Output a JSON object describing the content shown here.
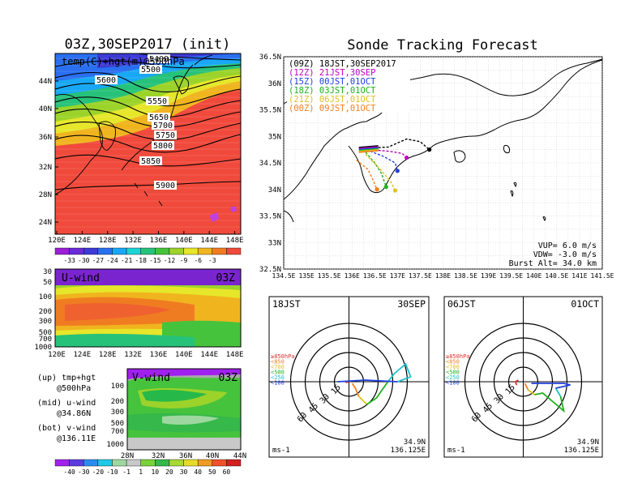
{
  "left_panel": {
    "title": "03Z,30SEP2017 (init)",
    "map_label": "temp(C)+hgt(m)@500hPa",
    "lon_ticks": [
      "120E",
      "124E",
      "128E",
      "132E",
      "136E",
      "140E",
      "144E",
      "148E"
    ],
    "lat_ticks": [
      "44N",
      "40N",
      "36N",
      "32N",
      "28N",
      "24N"
    ],
    "contour_labels": [
      "5400",
      "5500",
      "5600",
      "5550",
      "5650",
      "5700",
      "5750",
      "5800",
      "5850",
      "5900"
    ],
    "colorbar1_labels": [
      "-33",
      "-30",
      "-27",
      "-24",
      "-21",
      "-18",
      "-15",
      "-12",
      "-9",
      "-6",
      "-3"
    ],
    "colorbar1_colors": [
      "#9b1fd6",
      "#6a2bd9",
      "#3d3ad6",
      "#2a6ff0",
      "#19a8f5",
      "#1fd3d3",
      "#27c27a",
      "#46c33c",
      "#9bd32a",
      "#e6e62a",
      "#f0b41e",
      "#f07c22",
      "#f04a3c"
    ]
  },
  "uwind_panel": {
    "label": "U-wind",
    "time": "03Z",
    "levels": [
      "30",
      "50",
      "100",
      "200",
      "300",
      "500",
      "700",
      "1000"
    ],
    "lon_ticks": [
      "120E",
      "124E",
      "128E",
      "132E",
      "136E",
      "140E",
      "144E",
      "148E"
    ]
  },
  "vwind_panel": {
    "label": "V-wind",
    "time": "03Z",
    "levels": [
      "100",
      "200",
      "300",
      "500",
      "700",
      "1000"
    ],
    "lat_ticks": [
      "28N",
      "32N",
      "36N",
      "40N",
      "44N"
    ]
  },
  "legend_notes": {
    "up1": "(up) tmp+hgt",
    "up2": "@500hPa",
    "mid1": "(mid) u-wind",
    "mid2": "@34.86N",
    "bot1": "(bot) v-wind",
    "bot2": "@136.11E"
  },
  "colorbar2": {
    "labels": [
      "-40",
      "-30",
      "-20",
      "-10",
      "-1",
      "1",
      "10",
      "20",
      "30",
      "40",
      "50",
      "60"
    ],
    "colors": [
      "#a020f0",
      "#5a3ce0",
      "#2a8cf0",
      "#1fc8e6",
      "#9ed8a0",
      "#c8c8c8",
      "#7ad23a",
      "#36b84a",
      "#a8d832",
      "#e6dc28",
      "#f09a24",
      "#f0502a",
      "#d02020"
    ]
  },
  "forecast": {
    "title": "Sonde Tracking Forecast",
    "lat_ticks": [
      "36.5N",
      "36N",
      "35.5N",
      "35N",
      "34.5N",
      "34N",
      "33.5N",
      "33N",
      "32.5N"
    ],
    "lon_ticks": [
      "134.5E",
      "135E",
      "135.5E",
      "136E",
      "136.5E",
      "137E",
      "137.5E",
      "138E",
      "138.5E",
      "139E",
      "139.5E",
      "140E",
      "140.5E",
      "141E",
      "141.5E"
    ],
    "legend": [
      {
        "text": "(09Z) 18JST,30SEP2017",
        "color": "#000000"
      },
      {
        "text": "(12Z) 21JST,30SEP",
        "color": "#c000c0"
      },
      {
        "text": "(15Z) 00JST,01OCT",
        "color": "#2040e0"
      },
      {
        "text": "(18Z) 03JST,01OCT",
        "color": "#20b020"
      },
      {
        "text": "(21Z) 06JST,01OCT",
        "color": "#e0c020"
      },
      {
        "text": "(00Z) 09JST,01OCT",
        "color": "#f08020"
      }
    ],
    "vup": "VUP=  6.0 m/s",
    "vdw": "VDW= -3.0 m/s",
    "burst": "Burst Alt= 34.0 km"
  },
  "hodo1": {
    "time": "18JST",
    "date": "30SEP",
    "rings": [
      "15",
      "30",
      "45",
      "60"
    ],
    "unit": "ms-1",
    "pos1": "34.9N",
    "pos2": "136.125E",
    "levels": [
      {
        "text": "≥850hPa",
        "color": "#e03030"
      },
      {
        "text": "<850",
        "color": "#f08020"
      },
      {
        "text": "<700",
        "color": "#e0c020"
      },
      {
        "text": "<500",
        "color": "#20b020"
      },
      {
        "text": "<250",
        "color": "#20c0d0"
      },
      {
        "text": "<100",
        "color": "#2040e0"
      }
    ]
  },
  "hodo2": {
    "time": "06JST",
    "date": "01OCT",
    "rings": [
      "15",
      "30",
      "45",
      "60"
    ],
    "unit": "ms-1",
    "pos1": "34.9N",
    "pos2": "136.125E",
    "levels": [
      {
        "text": "≥850hPa",
        "color": "#e03030"
      },
      {
        "text": "<850",
        "color": "#f08020"
      },
      {
        "text": "<700",
        "color": "#e0c020"
      },
      {
        "text": "<500",
        "color": "#20b020"
      },
      {
        "text": "<250",
        "color": "#20c0d0"
      },
      {
        "text": "<100",
        "color": "#2040e0"
      }
    ]
  },
  "chart_data": [
    {
      "type": "heatmap",
      "title": "03Z,30SEP2017 (init)",
      "subtitle": "temp(C)+hgt(m)@500hPa",
      "x_ticks": [
        "120E",
        "124E",
        "128E",
        "132E",
        "136E",
        "140E",
        "144E",
        "148E"
      ],
      "y_ticks": [
        "44N",
        "40N",
        "36N",
        "32N",
        "28N",
        "24N"
      ],
      "contour_levels": [
        5400,
        5500,
        5550,
        5600,
        5650,
        5700,
        5750,
        5800,
        5850,
        5900
      ],
      "colorbar": [
        -33,
        -30,
        -27,
        -24,
        -21,
        -18,
        -15,
        -12,
        -9,
        -6,
        -3
      ]
    },
    {
      "type": "line",
      "title": "Sonde Tracking Forecast",
      "xlim": [
        134.5,
        141.5
      ],
      "ylim": [
        32.5,
        36.5
      ],
      "series": [
        {
          "name": "(09Z) 18JST,30SEP2017",
          "x": [
            136.4,
            136.8,
            137.2,
            137.5,
            137.7
          ],
          "y": [
            34.78,
            34.8,
            34.95,
            34.9,
            34.75
          ]
        },
        {
          "name": "(12Z) 21JST,30SEP",
          "x": [
            136.4,
            136.8,
            137.1,
            137.2
          ],
          "y": [
            34.75,
            34.72,
            34.68,
            34.6
          ]
        },
        {
          "name": "(15Z) 00JST,01OCT",
          "x": [
            136.4,
            136.7,
            136.95,
            137.0
          ],
          "y": [
            34.72,
            34.62,
            34.5,
            34.35
          ]
        },
        {
          "name": "(18Z) 03JST,01OCT",
          "x": [
            136.3,
            136.5,
            136.65,
            136.75
          ],
          "y": [
            34.7,
            34.5,
            34.3,
            34.05
          ]
        },
        {
          "name": "(21Z) 06JST,01OCT",
          "x": [
            136.3,
            136.6,
            136.85,
            136.95
          ],
          "y": [
            34.66,
            34.4,
            34.15,
            33.98
          ]
        },
        {
          "name": "(00Z) 09JST,01OCT",
          "x": [
            136.1,
            136.35,
            136.45,
            136.55
          ],
          "y": [
            34.55,
            34.38,
            34.2,
            34.0
          ]
        }
      ]
    }
  ]
}
